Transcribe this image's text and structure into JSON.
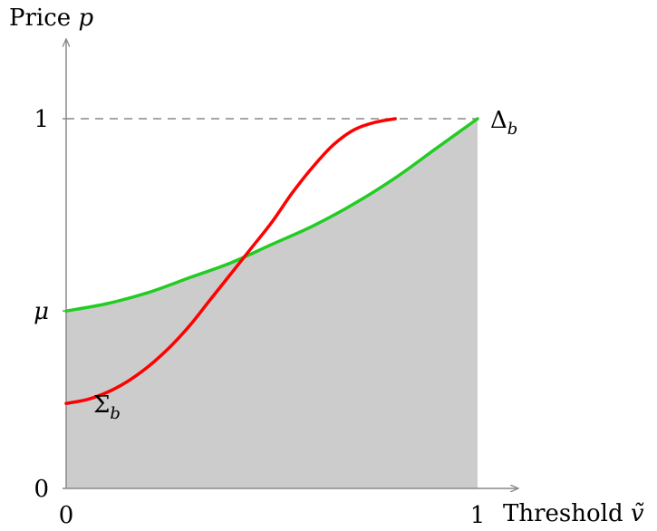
{
  "chart_data": {
    "type": "line",
    "xlabel": {
      "text": "Threshold",
      "symbol": "ṽ"
    },
    "ylabel": {
      "text": "Price",
      "symbol": "p"
    },
    "xlim": [
      0,
      1
    ],
    "ylim": [
      0,
      1
    ],
    "x_ticks": [
      {
        "value": 0,
        "label": "0"
      },
      {
        "value": 1,
        "label": "1"
      }
    ],
    "y_ticks": [
      {
        "value": 0,
        "label": "0"
      },
      {
        "value": 0.48,
        "label": "μ"
      },
      {
        "value": 1,
        "label": "1"
      }
    ],
    "reference_line": {
      "y": 1,
      "style": "dashed",
      "color": "#888888"
    },
    "shaded_region": {
      "x_range": [
        0,
        1
      ],
      "under_series": "Δ_b",
      "color": "#cccccc"
    },
    "series": [
      {
        "name": "Δ_b",
        "display": {
          "base": "Δ",
          "sub": "b"
        },
        "color": "#22cc22",
        "x": [
          0,
          0.1,
          0.2,
          0.3,
          0.4,
          0.5,
          0.6,
          0.7,
          0.8,
          0.9,
          1.0
        ],
        "y": [
          0.48,
          0.5,
          0.53,
          0.57,
          0.61,
          0.66,
          0.71,
          0.77,
          0.84,
          0.92,
          1.0
        ]
      },
      {
        "name": "Σ_b",
        "display": {
          "base": "Σ",
          "sub": "b"
        },
        "color": "#ff0000",
        "x": [
          0,
          0.05,
          0.1,
          0.15,
          0.2,
          0.25,
          0.3,
          0.35,
          0.4,
          0.45,
          0.5,
          0.55,
          0.6,
          0.65,
          0.7,
          0.75,
          0.8
        ],
        "y": [
          0.23,
          0.24,
          0.26,
          0.29,
          0.33,
          0.38,
          0.44,
          0.51,
          0.58,
          0.65,
          0.72,
          0.8,
          0.87,
          0.93,
          0.97,
          0.99,
          1.0
        ]
      }
    ]
  }
}
